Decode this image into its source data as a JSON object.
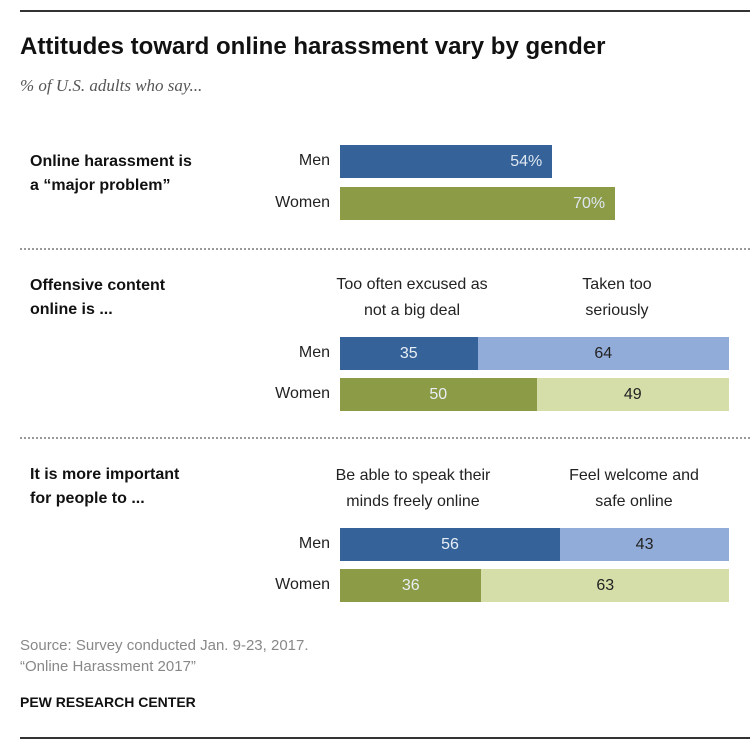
{
  "title": "Attitudes toward online harassment vary by gender",
  "subtitle": "% of U.S. adults who say...",
  "source": "Source: Survey conducted Jan. 9-23, 2017.",
  "report": "“Online Harassment 2017”",
  "org": "PEW RESEARCH CENTER",
  "colors": {
    "men_dark": "#356399",
    "men_light": "#92acd9",
    "women_dark": "#8c9c46",
    "women_light": "#d5dea9"
  },
  "chart_data": [
    {
      "type": "bar",
      "title": "Online harassment is a “major problem”",
      "question_lines": [
        "Online harassment is",
        "a “major problem”"
      ],
      "categories": [
        "Men",
        "Women"
      ],
      "values": [
        54,
        70
      ],
      "labels": [
        "54%",
        "70%"
      ],
      "xlim": [
        0,
        100
      ]
    },
    {
      "type": "bar",
      "stacked": true,
      "question_lines": [
        "Offensive content",
        "online is ..."
      ],
      "categories": [
        "Men",
        "Women"
      ],
      "series": [
        {
          "name": "Too often excused as not a big deal",
          "name_lines": [
            "Too often excused as",
            "not a big deal"
          ],
          "values": [
            35,
            50
          ]
        },
        {
          "name": "Taken too seriously",
          "name_lines": [
            "Taken too",
            "seriously"
          ],
          "values": [
            64,
            49
          ]
        }
      ],
      "xlim": [
        0,
        100
      ]
    },
    {
      "type": "bar",
      "stacked": true,
      "question_lines": [
        "It is more important",
        "for people to ..."
      ],
      "categories": [
        "Men",
        "Women"
      ],
      "series": [
        {
          "name": "Be able to speak their minds freely online",
          "name_lines": [
            "Be able to speak their",
            "minds freely online"
          ],
          "values": [
            56,
            36
          ]
        },
        {
          "name": "Feel welcome and safe online",
          "name_lines": [
            "Feel welcome and",
            "safe online"
          ],
          "values": [
            43,
            63
          ]
        }
      ],
      "xlim": [
        0,
        100
      ]
    }
  ]
}
